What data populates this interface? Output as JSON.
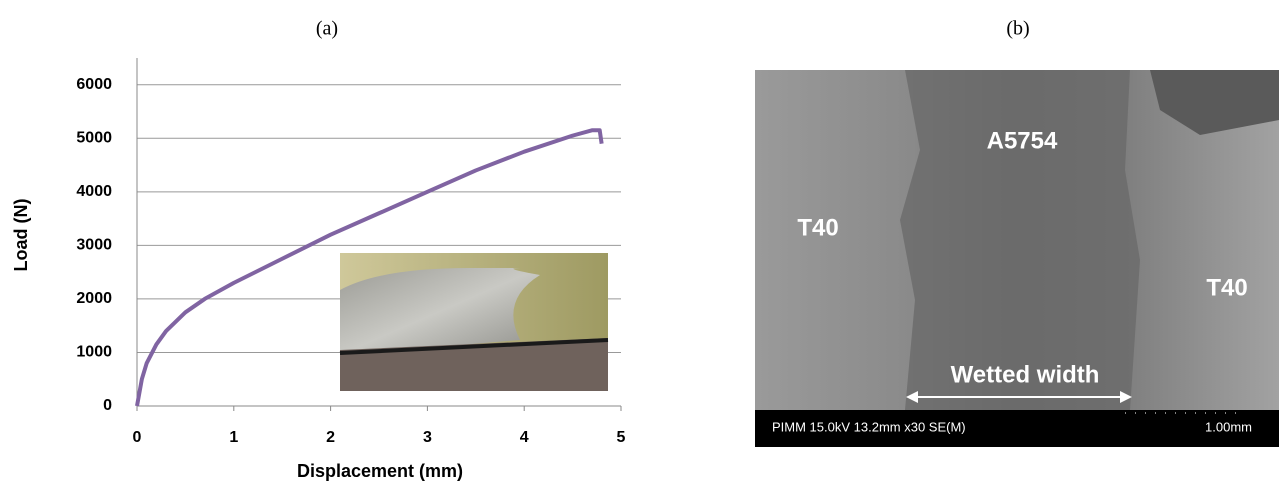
{
  "panel_labels": {
    "a": "(a)",
    "b": "(b)"
  },
  "chart_data": {
    "type": "line",
    "x_label": "Displacement (mm)",
    "y_label": "Load (N)",
    "x": [
      0,
      0.05,
      0.1,
      0.2,
      0.3,
      0.5,
      0.7,
      1,
      1.5,
      2,
      2.5,
      3,
      3.5,
      4,
      4.5,
      4.7,
      4.78,
      4.8
    ],
    "values": [
      0,
      500,
      800,
      1150,
      1400,
      1750,
      2000,
      2300,
      2750,
      3200,
      3600,
      4000,
      4400,
      4750,
      5050,
      5150,
      5150,
      4900
    ],
    "color": "#8064a2",
    "xlim": [
      0,
      5
    ],
    "xticks": [
      0,
      1,
      2,
      3,
      4,
      5
    ],
    "ylim": [
      0,
      6500
    ],
    "yticks": [
      0,
      1000,
      2000,
      3000,
      4000,
      5000,
      6000
    ],
    "grid": true
  },
  "sem_image": {
    "labels": [
      "T40",
      "A5754",
      "T40"
    ],
    "annotation": "Wetted width",
    "info_bar": "PIMM 15.0kV 13.2mm x30 SE(M)",
    "scale": "1.00mm"
  }
}
